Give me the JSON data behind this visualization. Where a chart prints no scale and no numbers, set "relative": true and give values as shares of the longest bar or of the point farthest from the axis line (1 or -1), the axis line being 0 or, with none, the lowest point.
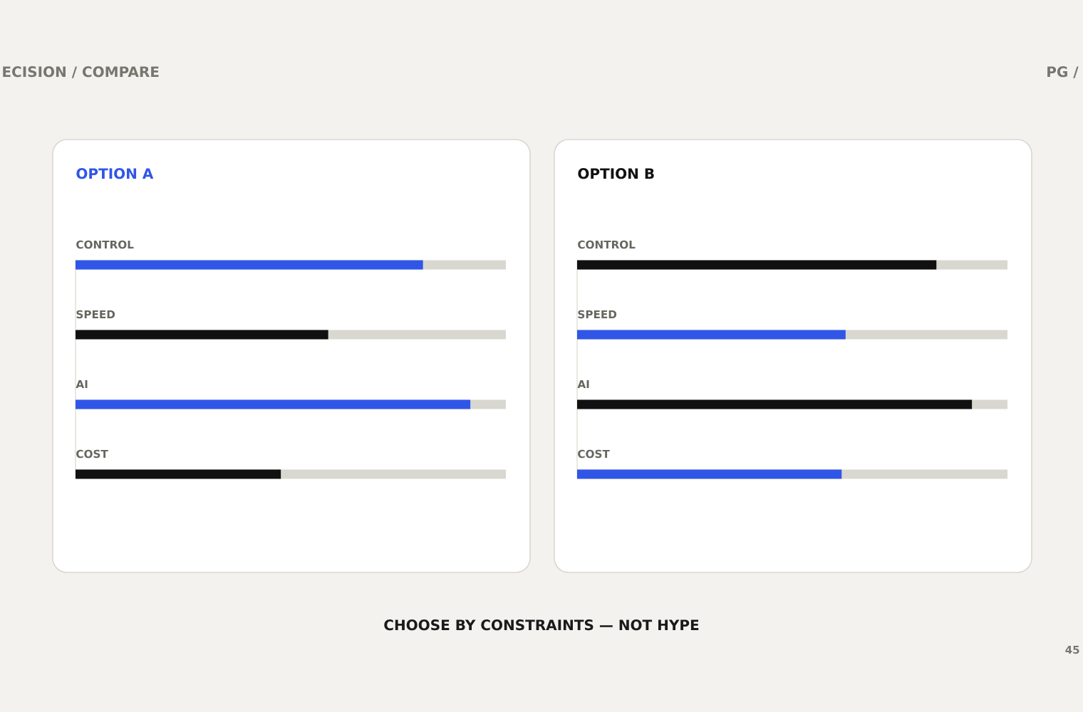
{
  "chart_data": [
    {
      "type": "other",
      "title": "ECISION / COMPARE",
      "annotations": [
        "PG /",
        "CHOOSE BY CONSTRAINTS — NOT HYPE",
        "45"
      ]
    },
    {
      "type": "bar",
      "orientation": "horizontal",
      "relative": true,
      "title": "OPTION A",
      "categories": [
        "CONTROL",
        "SPEED",
        "AI",
        "COST"
      ],
      "values": [
        0.88,
        0.64,
        1,
        0.52
      ],
      "colors": [
        "#3056e8",
        "#111111",
        "#3056e8",
        "#111111"
      ],
      "grid": "y"
    },
    {
      "type": "bar",
      "orientation": "horizontal",
      "relative": true,
      "title": "OPTION B",
      "categories": [
        "CONTROL",
        "SPEED",
        "AI",
        "COST"
      ],
      "values": [
        0.91,
        0.68,
        1,
        0.67
      ],
      "colors": [
        "#111111",
        "#3056e8",
        "#111111",
        "#3056e8"
      ],
      "grid": "y"
    }
  ]
}
